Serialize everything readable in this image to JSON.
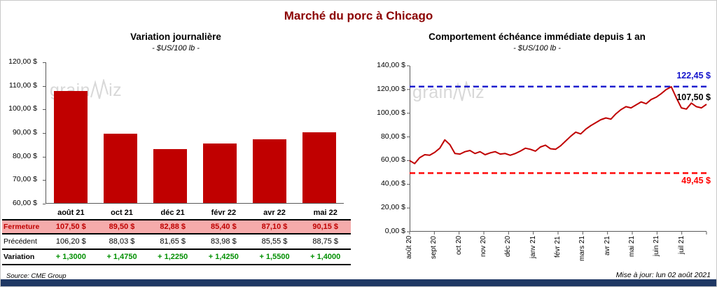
{
  "page_title": "Marché du porc à Chicago",
  "watermark": {
    "part1": "grain",
    "part2": "iz"
  },
  "footer": {
    "source": "Source: CME Group",
    "updated": "Mise à jour: lun 02 août 2021"
  },
  "colors": {
    "title": "#8B0000",
    "bar": "#C00000",
    "axis": "#595959",
    "ref_high": "#1414CC",
    "ref_low": "#FF0000",
    "table_fermeture_bg": "#F5ABAB",
    "table_fermeture_text": "#C00000",
    "table_variation_text": "#008F00",
    "bottom_bar": "#1F3864"
  },
  "chart_data": [
    {
      "type": "bar",
      "title": "Variation  journalière",
      "subtitle": "- $US/100 lb -",
      "categories": [
        "août 21",
        "oct 21",
        "déc 21",
        "févr 22",
        "avr 22",
        "mai 22"
      ],
      "values": [
        107.5,
        89.5,
        82.88,
        85.4,
        87.1,
        90.15
      ],
      "ylim": [
        60,
        120
      ],
      "y_ticks": [
        {
          "value": 120,
          "label": "120,00 $"
        },
        {
          "value": 110,
          "label": "110,00 $"
        },
        {
          "value": 100,
          "label": "100,00 $"
        },
        {
          "value": 90,
          "label": "90,00 $"
        },
        {
          "value": 80,
          "label": "80,00 $"
        },
        {
          "value": 70,
          "label": "70,00 $"
        },
        {
          "value": 60,
          "label": "60,00 $"
        }
      ],
      "table": {
        "rows": [
          {
            "label": "Fermeture",
            "style": "fermeture",
            "values": [
              "107,50  $",
              "89,50  $",
              "82,88  $",
              "85,40  $",
              "87,10  $",
              "90,15  $"
            ]
          },
          {
            "label": "Précédent",
            "style": "precedent",
            "values": [
              "106,20  $",
              "88,03  $",
              "81,65  $",
              "83,98  $",
              "85,55  $",
              "88,75  $"
            ]
          },
          {
            "label": "Variation",
            "style": "variation",
            "values": [
              "+ 1,3000",
              "+ 1,4750",
              "+ 1,2250",
              "+ 1,4250",
              "+ 1,5500",
              "+ 1,4000"
            ]
          }
        ]
      }
    },
    {
      "type": "line",
      "title": "Comportement  échéance  immédiate  depuis 1 an",
      "subtitle": "- $US/100 lb -",
      "x_tick_labels": [
        "août 20",
        "sept 20",
        "oct 20",
        "nov 20",
        "déc 20",
        "janv 21",
        "févr 21",
        "mars 21",
        "avr 21",
        "mai 21",
        "juin 21",
        "juil 21"
      ],
      "ylim": [
        0,
        140
      ],
      "y_ticks": [
        {
          "value": 140,
          "label": "140,00 $"
        },
        {
          "value": 120,
          "label": "120,00 $"
        },
        {
          "value": 100,
          "label": "100,00 $"
        },
        {
          "value": 80,
          "label": "80,00 $"
        },
        {
          "value": 60,
          "label": "60,00 $"
        },
        {
          "value": 40,
          "label": "40,00 $"
        },
        {
          "value": 20,
          "label": "20,00 $"
        },
        {
          "value": 0,
          "label": "0,00 $"
        }
      ],
      "series": [
        {
          "name": "échéance immédiate",
          "color": "#C00000",
          "values": [
            60,
            57.5,
            62.5,
            65,
            64.5,
            67,
            70.5,
            77.5,
            73.5,
            66,
            65.5,
            67.5,
            68.5,
            66,
            67.5,
            65,
            66.5,
            67.5,
            65.5,
            66,
            64.5,
            66,
            68,
            70.5,
            69.5,
            68,
            71.5,
            73,
            70,
            69.5,
            72.5,
            76.5,
            80.5,
            84,
            82.5,
            86.5,
            89.5,
            92,
            94.5,
            96,
            95,
            99.5,
            103,
            105.5,
            104.5,
            107,
            109.5,
            108,
            111.5,
            113.5,
            116.5,
            120,
            122.3,
            113,
            104.5,
            103.5,
            108.5,
            105.5,
            104.5,
            107.5
          ]
        }
      ],
      "reference_lines": [
        {
          "value": 122.45,
          "label": "122,45 $",
          "color": "#1414CC",
          "style": "dashed"
        },
        {
          "value": 49.45,
          "label": "49,45 $",
          "color": "#FF0000",
          "style": "dashed"
        }
      ],
      "annotations": [
        {
          "text": "107,50 $",
          "value": 107.5,
          "color": "#000000"
        }
      ]
    }
  ]
}
